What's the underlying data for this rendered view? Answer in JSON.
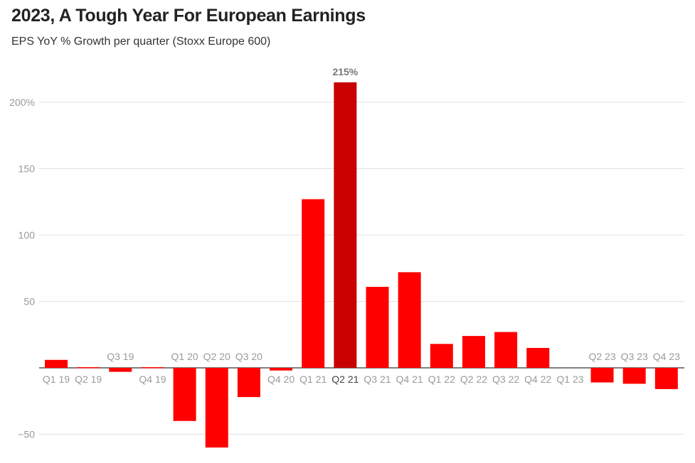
{
  "chart_data": {
    "type": "bar",
    "title": "2023, A Tough Year For European Earnings",
    "subtitle": "EPS YoY % Growth per quarter (Stoxx Europe 600)",
    "categories": [
      "Q1 19",
      "Q2 19",
      "Q3 19",
      "Q4 19",
      "Q1 20",
      "Q2 20",
      "Q3 20",
      "Q4 20",
      "Q1 21",
      "Q2 21",
      "Q3 21",
      "Q4 21",
      "Q1 22",
      "Q2 22",
      "Q3 22",
      "Q4 22",
      "Q1 23",
      "Q2 23",
      "Q3 23",
      "Q4 23"
    ],
    "values": [
      6,
      0.5,
      -3,
      0.5,
      -40,
      -60,
      -22,
      -2,
      127,
      215,
      61,
      72,
      18,
      24,
      27,
      15,
      0,
      -11,
      -12,
      -16
    ],
    "yticks": [
      {
        "value": 200,
        "label": "200%"
      },
      {
        "value": 150,
        "label": "150"
      },
      {
        "value": 100,
        "label": "100"
      },
      {
        "value": 50,
        "label": "50"
      },
      {
        "value": -50,
        "label": "−50"
      }
    ],
    "ylim": [
      -65,
      230
    ],
    "highlight_index": 9,
    "highlight_label": "215%",
    "colors": {
      "bar": "#ff0000",
      "highlight": "#c80000"
    },
    "grid": true
  }
}
